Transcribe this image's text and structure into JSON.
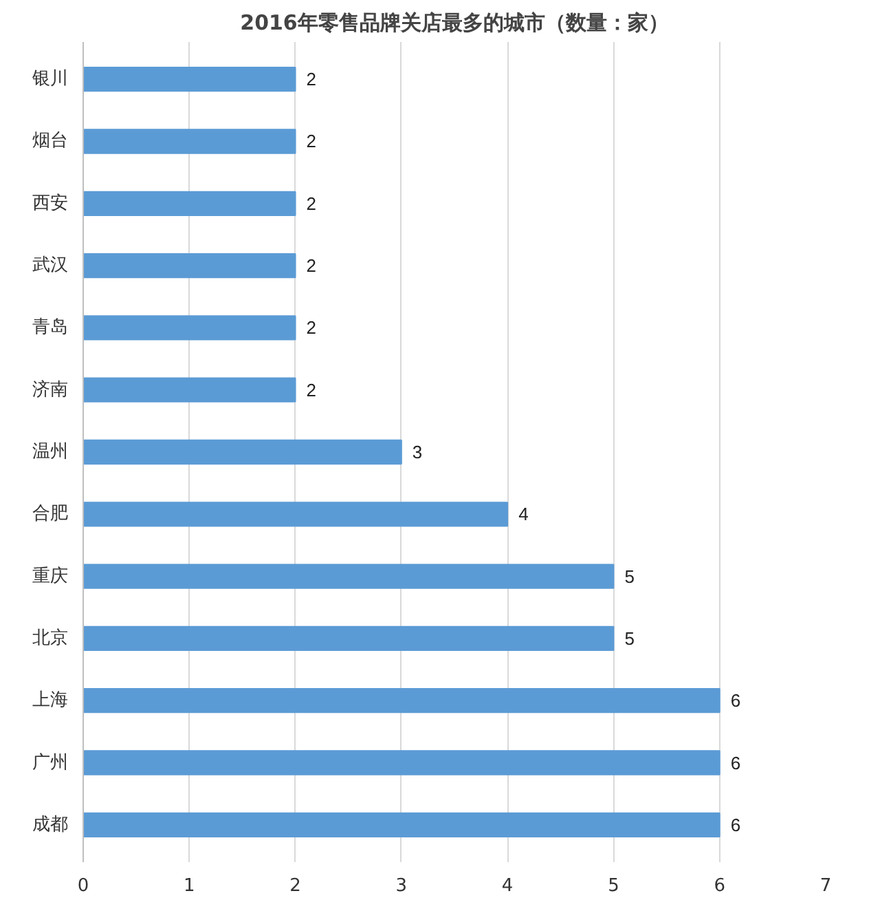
{
  "chart_data": {
    "type": "bar",
    "orientation": "horizontal",
    "title": "2016年零售品牌关店最多的城市（数量：家）",
    "categories": [
      "银川",
      "烟台",
      "西安",
      "武汉",
      "青岛",
      "济南",
      "温州",
      "合肥",
      "重庆",
      "北京",
      "上海",
      "广州",
      "成都"
    ],
    "values": [
      2,
      2,
      2,
      2,
      2,
      2,
      3,
      4,
      5,
      5,
      6,
      6,
      6
    ],
    "color": "#5b9bd5",
    "xlim": [
      0,
      7
    ],
    "xticks": [
      0,
      1,
      2,
      3,
      4,
      5,
      6,
      7
    ],
    "grid": "x",
    "data_labels": true
  }
}
